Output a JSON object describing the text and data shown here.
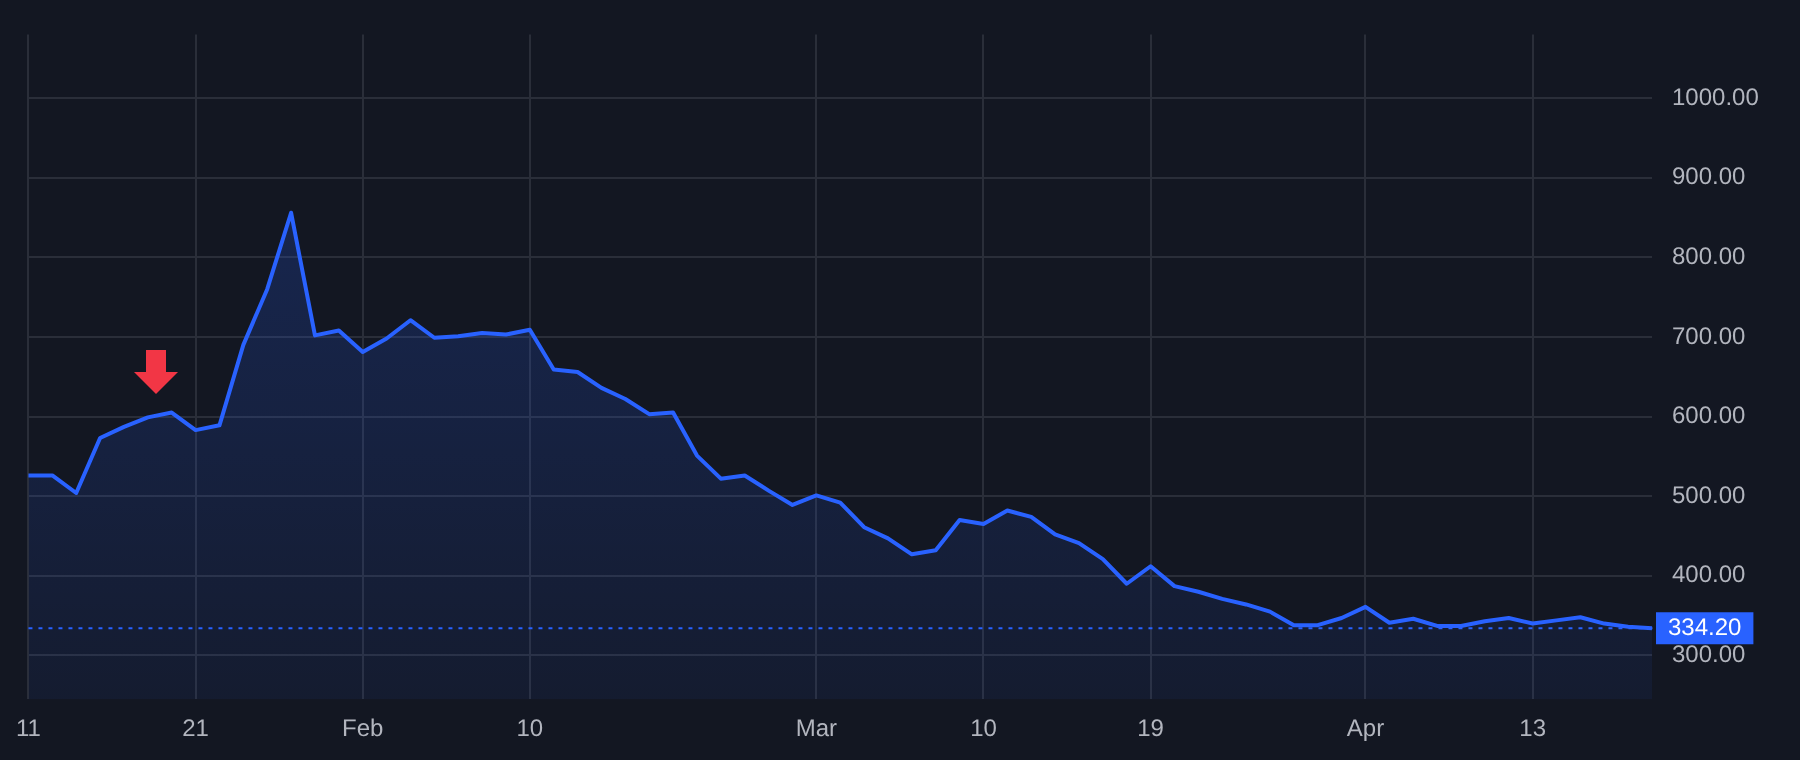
{
  "chart_data": {
    "type": "area",
    "categories": [
      "11",
      null,
      null,
      null,
      null,
      null,
      null,
      "21",
      null,
      null,
      null,
      null,
      null,
      null,
      "Feb",
      null,
      null,
      null,
      null,
      null,
      null,
      "10",
      null,
      null,
      null,
      null,
      null,
      null,
      null,
      null,
      null,
      null,
      null,
      "Mar",
      null,
      null,
      null,
      null,
      null,
      null,
      "10",
      null,
      null,
      null,
      null,
      null,
      null,
      "19",
      null,
      null,
      null,
      null,
      null,
      null,
      null,
      null,
      "Apr",
      null,
      null,
      null,
      null,
      null,
      null,
      "13",
      null,
      null,
      null,
      null,
      null
    ],
    "series": [
      {
        "color": "#2962ff",
        "values": [
          526,
          526,
          504,
          573,
          587,
          599,
          605,
          583,
          589,
          690,
          760,
          856,
          702,
          708,
          681,
          698,
          721,
          699,
          701,
          705,
          703,
          709,
          659,
          656,
          636,
          622,
          603,
          605,
          551,
          522,
          526,
          507,
          489,
          501,
          492,
          461,
          447,
          427,
          432,
          470,
          465,
          482,
          474,
          452,
          441,
          421,
          390,
          412,
          387,
          380,
          371,
          364,
          355,
          338,
          338,
          347,
          361,
          341,
          346,
          337,
          337,
          343,
          347,
          340,
          344,
          348,
          340,
          336,
          334.2
        ]
      }
    ],
    "ylim": [
      245,
      1080
    ],
    "yticks": [
      {
        "value": 300,
        "label": "300.00"
      },
      {
        "value": 400,
        "label": "400.00"
      },
      {
        "value": 500,
        "label": "500.00"
      },
      {
        "value": 600,
        "label": "600.00"
      },
      {
        "value": 700,
        "label": "700.00"
      },
      {
        "value": 800,
        "label": "800.00"
      },
      {
        "value": 900,
        "label": "900.00"
      },
      {
        "value": 1000,
        "label": "1000.00"
      }
    ],
    "ref_lines": [
      {
        "axis": "y",
        "value": 334.2,
        "label": "334.20",
        "color": "#2962ff",
        "line_style": "dotted"
      }
    ],
    "grid": true,
    "legend": false,
    "marker": "none",
    "line_style": "solid"
  }
}
